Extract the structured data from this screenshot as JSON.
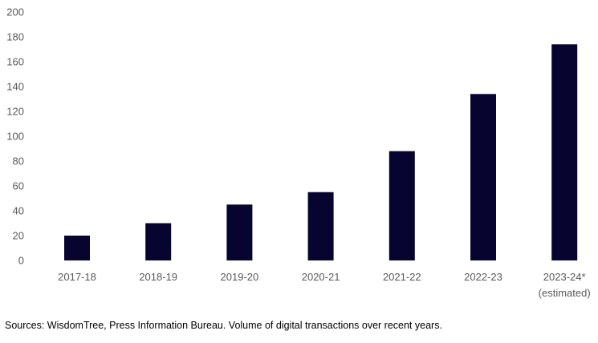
{
  "chart_data": {
    "type": "bar",
    "categories": [
      "2017-18",
      "2018-19",
      "2019-20",
      "2020-21",
      "2021-22",
      "2022-23",
      "2023-24*|(estimated)"
    ],
    "values": [
      20,
      30,
      45,
      55,
      88,
      134,
      174
    ],
    "ylim": [
      0,
      200
    ],
    "yticks": [
      0,
      20,
      40,
      60,
      80,
      100,
      120,
      140,
      160,
      180,
      200
    ],
    "grid": false,
    "bar_color": "#07042f"
  },
  "footer": {
    "source": "Sources: WisdomTree, Press Information Bureau.  Volume of digital transactions over recent years."
  }
}
